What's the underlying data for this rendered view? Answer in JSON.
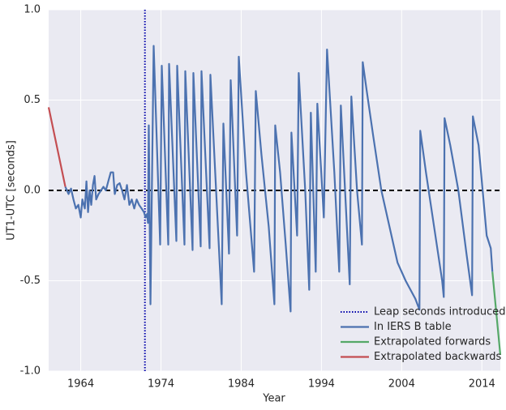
{
  "chart_data": {
    "type": "line",
    "xlabel": "Year",
    "ylabel": "UT1-UTC [seconds]",
    "xlim": [
      1960,
      2016.3
    ],
    "ylim": [
      -1.0,
      1.0
    ],
    "xticks": [
      1964,
      1974,
      1984,
      1994,
      2004,
      2014
    ],
    "yticks": [
      {
        "value": -1.0,
        "label": "-1.0"
      },
      -0.5,
      {
        "value": 0.0,
        "label": "0.0"
      },
      0.5,
      {
        "value": 1.0,
        "label": "1.0"
      }
    ],
    "grid": true,
    "legend": "lower right",
    "hline": {
      "value": 0,
      "color": "#000000"
    },
    "vline": {
      "value": 1972,
      "name": "Leap seconds introduced",
      "color": "#0000aa"
    },
    "series": [
      {
        "name": "In IERS B table",
        "color": "#4c72b0",
        "x": [
          1962.08,
          1962.48,
          1962.79,
          1963.09,
          1963.39,
          1963.7,
          1964.0,
          1964.2,
          1964.51,
          1964.71,
          1964.91,
          1965.11,
          1965.31,
          1965.52,
          1965.72,
          1965.92,
          1966.22,
          1966.53,
          1966.83,
          1967.13,
          1967.43,
          1967.74,
          1968.04,
          1968.24,
          1968.55,
          1968.85,
          1969.15,
          1969.45,
          1969.76,
          1970.06,
          1970.36,
          1970.67,
          1970.97,
          1971.27,
          1971.58,
          1971.88,
          1972.08,
          1972.28,
          1972.38,
          1972.48,
          1972.69,
          1973.09,
          1973.9,
          1974.1,
          1974.91,
          1975.01,
          1975.92,
          1976.02,
          1976.93,
          1977.03,
          1977.94,
          1978.04,
          1978.95,
          1979.05,
          1980.06,
          1980.16,
          1981.57,
          1981.78,
          1982.48,
          1982.69,
          1983.49,
          1983.7,
          1984.6,
          1985.61,
          1985.82,
          1986.52,
          1987.43,
          1988.14,
          1988.24,
          1988.85,
          1989.55,
          1990.16,
          1990.26,
          1990.97,
          1991.17,
          1991.98,
          1992.48,
          1992.68,
          1993.29,
          1993.49,
          1994.3,
          1994.7,
          1995.61,
          1996.22,
          1996.42,
          1997.53,
          1997.73,
          1998.44,
          1999.05,
          1999.15,
          1999.65,
          2000.46,
          2001.47,
          2002.48,
          2003.49,
          2004.5,
          2005.71,
          2006.22,
          2006.32,
          2007.03,
          2008.04,
          2009.05,
          2009.25,
          2009.35,
          2010.06,
          2011.07,
          2012.08,
          2012.78,
          2012.88,
          2013.59,
          2014.6,
          2015.11,
          2015.31
        ],
        "values": [
          0.02,
          -0.02,
          0.01,
          -0.05,
          -0.1,
          -0.08,
          -0.15,
          -0.05,
          -0.1,
          0.05,
          -0.12,
          0.0,
          -0.08,
          0.03,
          0.08,
          -0.05,
          -0.02,
          0.0,
          0.02,
          0.0,
          0.05,
          0.1,
          0.1,
          -0.02,
          0.03,
          0.04,
          0.0,
          -0.05,
          0.03,
          -0.08,
          -0.05,
          -0.1,
          -0.05,
          -0.08,
          -0.1,
          -0.12,
          -0.15,
          -0.13,
          -0.18,
          0.36,
          -0.63,
          0.8,
          -0.3,
          0.69,
          -0.3,
          0.7,
          -0.28,
          0.69,
          -0.3,
          0.66,
          -0.33,
          0.65,
          -0.31,
          0.66,
          -0.32,
          0.64,
          -0.63,
          0.37,
          -0.35,
          0.61,
          -0.25,
          0.74,
          0.1,
          -0.45,
          0.55,
          0.2,
          -0.2,
          -0.63,
          0.36,
          0.1,
          -0.3,
          -0.67,
          0.32,
          -0.25,
          0.65,
          0.0,
          -0.55,
          0.43,
          -0.45,
          0.48,
          -0.15,
          0.78,
          0.1,
          -0.45,
          0.47,
          -0.52,
          0.52,
          0.0,
          -0.3,
          0.71,
          0.55,
          0.3,
          0.0,
          -0.2,
          -0.4,
          -0.5,
          -0.6,
          -0.66,
          0.33,
          0.1,
          -0.2,
          -0.5,
          -0.59,
          0.4,
          0.25,
          0.0,
          -0.35,
          -0.58,
          0.41,
          0.25,
          -0.25,
          -0.32,
          -0.45
        ]
      },
      {
        "name": "Extrapolated forwards",
        "color": "#55a868",
        "x": [
          2015.31,
          2016.3
        ],
        "values": [
          -0.45,
          -0.91
        ]
      },
      {
        "name": "Extrapolated backwards",
        "color": "#c44e52",
        "x": [
          1960,
          1962.08
        ],
        "values": [
          0.46,
          0.02
        ]
      }
    ]
  }
}
